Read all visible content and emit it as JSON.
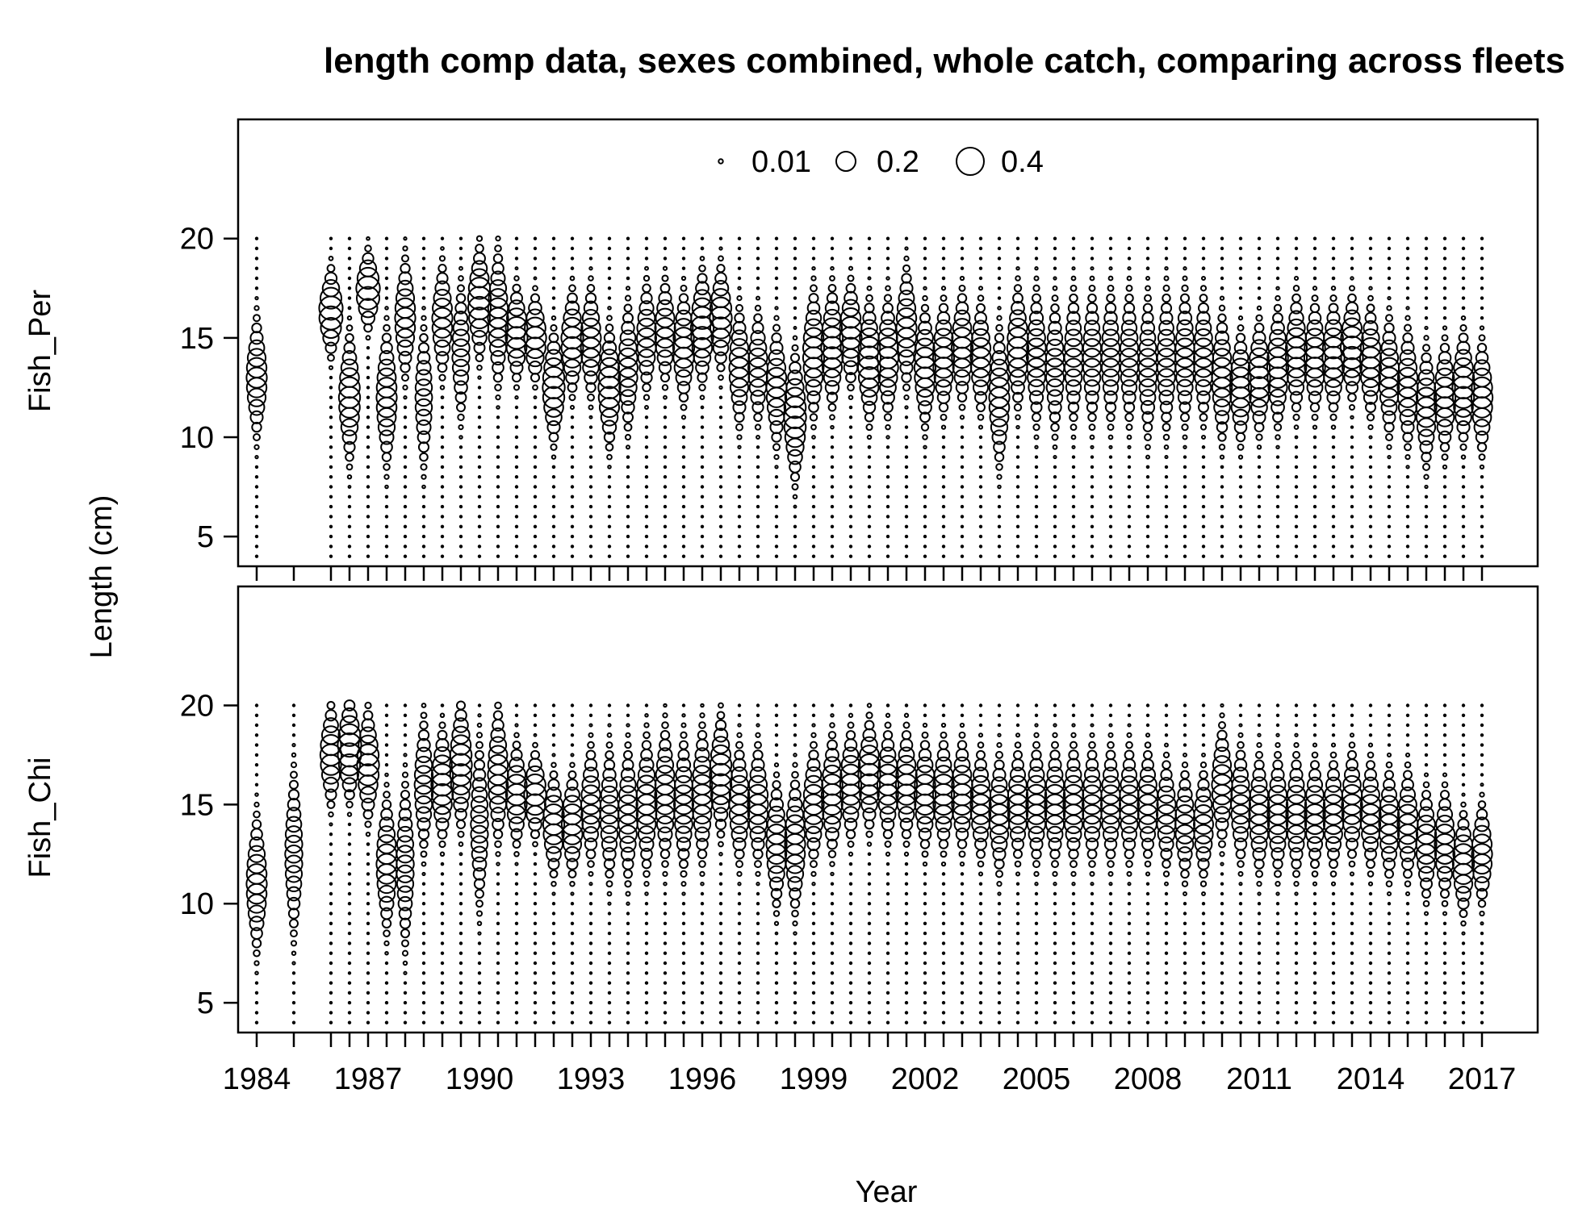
{
  "chart_data": {
    "type": "scatter",
    "subtype": "bubble",
    "title": "length comp data, sexes combined, whole catch, comparing across fleets",
    "xlabel": "Year",
    "ylabel": "Length (cm)",
    "x_ticks": [
      1984,
      1987,
      1990,
      1993,
      1996,
      1999,
      2002,
      2005,
      2008,
      2011,
      2014,
      2017
    ],
    "y_ticks": [
      5,
      10,
      15,
      20
    ],
    "xlim": [
      1983.5,
      2018.5
    ],
    "ylim": [
      3.5,
      26
    ],
    "length_bins": [
      4,
      20,
      0.5
    ],
    "legend": {
      "position": "top-center",
      "entries": [
        {
          "label": "0.01",
          "value": 0.01
        },
        {
          "label": "0.2",
          "value": 0.2
        },
        {
          "label": "0.4",
          "value": 0.4
        }
      ]
    },
    "years": [
      1984,
      1985,
      1986,
      1986.5,
      1987,
      1987.5,
      1988,
      1988.5,
      1989,
      1989.5,
      1990,
      1990.5,
      1991,
      1991.5,
      1992,
      1992.5,
      1993,
      1993.5,
      1994,
      1994.5,
      1995,
      1995.5,
      1996,
      1996.5,
      1997,
      1997.5,
      1998,
      1998.5,
      1999,
      1999.5,
      2000,
      2000.5,
      2001,
      2001.5,
      2002,
      2002.5,
      2003,
      2003.5,
      2004,
      2004.5,
      2005,
      2005.5,
      2006,
      2006.5,
      2007,
      2007.5,
      2008,
      2008.5,
      2009,
      2009.5,
      2010,
      2010.5,
      2011,
      2011.5,
      2012,
      2012.5,
      2013,
      2013.5,
      2014,
      2014.5,
      2015,
      2015.5,
      2016,
      2016.5,
      2017
    ],
    "panels": [
      {
        "name": "Fish_Per",
        "present": [
          1,
          0,
          1,
          1,
          1,
          1,
          1,
          1,
          1,
          1,
          1,
          1,
          1,
          1,
          1,
          1,
          1,
          1,
          1,
          1,
          1,
          1,
          1,
          1,
          1,
          1,
          1,
          1,
          1,
          1,
          1,
          1,
          1,
          1,
          1,
          1,
          1,
          1,
          1,
          1,
          1,
          1,
          1,
          1,
          1,
          1,
          1,
          1,
          1,
          1,
          1,
          1,
          1,
          1,
          1,
          1,
          1,
          1,
          1,
          1,
          1,
          1,
          1,
          1,
          1
        ],
        "mode_length": [
          13.0,
          12.0,
          16.3,
          12.0,
          17.4,
          12.0,
          16.0,
          12.0,
          15.9,
          14.3,
          16.8,
          16.0,
          15.2,
          15.0,
          12.5,
          14.8,
          14.8,
          12.5,
          13.5,
          15.0,
          15.3,
          14.5,
          15.5,
          16.0,
          13.5,
          13.5,
          12.5,
          11.0,
          14.2,
          14.5,
          15.2,
          13.8,
          14.0,
          15.5,
          13.5,
          14.0,
          14.5,
          14.0,
          12.0,
          14.5,
          14.0,
          13.5,
          14.0,
          14.0,
          14.0,
          14.0,
          13.5,
          13.8,
          14.0,
          14.0,
          13.0,
          12.5,
          13.0,
          13.5,
          14.2,
          14.0,
          14.0,
          14.5,
          13.8,
          13.0,
          12.5,
          11.5,
          12.0,
          12.5,
          12.0
        ],
        "spread": [
          1.4,
          1.5,
          1.0,
          1.5,
          0.9,
          1.6,
          1.4,
          1.7,
          1.3,
          1.6,
          1.3,
          1.6,
          1.1,
          1.0,
          1.3,
          1.2,
          1.3,
          1.4,
          1.5,
          1.3,
          1.2,
          1.3,
          1.3,
          1.2,
          1.4,
          1.3,
          1.4,
          1.5,
          1.5,
          1.4,
          1.2,
          1.4,
          1.4,
          1.4,
          1.4,
          1.3,
          1.3,
          1.3,
          1.6,
          1.4,
          1.6,
          1.6,
          1.6,
          1.6,
          1.6,
          1.6,
          1.7,
          1.7,
          1.6,
          1.5,
          1.5,
          1.3,
          1.3,
          1.4,
          1.4,
          1.3,
          1.3,
          1.2,
          1.3,
          1.4,
          1.4,
          1.4,
          1.3,
          1.3,
          1.3
        ],
        "peak_proportion": [
          0.22,
          0.2,
          0.3,
          0.24,
          0.3,
          0.22,
          0.22,
          0.15,
          0.22,
          0.16,
          0.28,
          0.22,
          0.26,
          0.26,
          0.26,
          0.26,
          0.22,
          0.26,
          0.2,
          0.2,
          0.22,
          0.24,
          0.28,
          0.26,
          0.22,
          0.2,
          0.22,
          0.26,
          0.24,
          0.26,
          0.26,
          0.28,
          0.24,
          0.22,
          0.24,
          0.24,
          0.24,
          0.22,
          0.22,
          0.24,
          0.2,
          0.18,
          0.18,
          0.18,
          0.18,
          0.18,
          0.18,
          0.18,
          0.2,
          0.2,
          0.22,
          0.24,
          0.26,
          0.24,
          0.24,
          0.24,
          0.26,
          0.28,
          0.24,
          0.22,
          0.22,
          0.22,
          0.24,
          0.26,
          0.24
        ]
      },
      {
        "name": "Fish_Chi",
        "present": [
          1,
          1,
          1,
          1,
          1,
          1,
          1,
          1,
          1,
          1,
          1,
          1,
          1,
          1,
          1,
          1,
          1,
          1,
          1,
          1,
          1,
          1,
          1,
          1,
          1,
          1,
          1,
          1,
          1,
          1,
          1,
          1,
          1,
          1,
          1,
          1,
          1,
          1,
          1,
          1,
          1,
          1,
          1,
          1,
          1,
          1,
          1,
          1,
          1,
          1,
          1,
          1,
          1,
          1,
          1,
          1,
          1,
          1,
          1,
          1,
          1,
          1,
          1,
          1,
          1
        ],
        "mode_length": [
          11.0,
          12.5,
          17.5,
          17.8,
          17.0,
          12.0,
          12.0,
          16.0,
          16.0,
          17.0,
          14.0,
          16.5,
          15.5,
          15.5,
          14.0,
          14.0,
          15.0,
          14.5,
          14.5,
          15.0,
          15.5,
          15.0,
          15.5,
          16.5,
          15.0,
          15.0,
          13.0,
          13.0,
          15.0,
          15.5,
          16.0,
          16.5,
          16.0,
          16.0,
          15.5,
          15.5,
          15.5,
          15.0,
          14.5,
          15.0,
          15.0,
          15.0,
          15.0,
          15.0,
          15.0,
          15.0,
          15.0,
          14.5,
          14.0,
          14.0,
          16.0,
          15.0,
          14.5,
          14.5,
          14.5,
          14.5,
          14.5,
          15.0,
          14.5,
          14.0,
          14.0,
          13.0,
          13.0,
          12.0,
          12.5
        ],
        "spread": [
          1.6,
          2.0,
          1.2,
          1.2,
          1.3,
          1.6,
          2.0,
          1.6,
          1.3,
          1.5,
          2.0,
          1.6,
          1.2,
          1.0,
          1.2,
          1.2,
          1.4,
          1.6,
          1.6,
          1.6,
          1.6,
          1.6,
          1.6,
          1.4,
          1.4,
          1.4,
          1.5,
          1.6,
          1.4,
          1.4,
          1.3,
          1.3,
          1.3,
          1.3,
          1.3,
          1.3,
          1.3,
          1.3,
          1.4,
          1.3,
          1.4,
          1.4,
          1.4,
          1.4,
          1.4,
          1.4,
          1.3,
          1.3,
          1.3,
          1.3,
          1.4,
          1.4,
          1.4,
          1.4,
          1.4,
          1.3,
          1.3,
          1.3,
          1.3,
          1.3,
          1.3,
          1.3,
          1.3,
          1.2,
          1.2
        ],
        "peak_proportion": [
          0.22,
          0.16,
          0.24,
          0.3,
          0.26,
          0.22,
          0.16,
          0.18,
          0.26,
          0.26,
          0.16,
          0.22,
          0.24,
          0.26,
          0.24,
          0.24,
          0.2,
          0.18,
          0.2,
          0.22,
          0.22,
          0.2,
          0.22,
          0.26,
          0.22,
          0.22,
          0.22,
          0.22,
          0.22,
          0.24,
          0.24,
          0.26,
          0.24,
          0.24,
          0.24,
          0.24,
          0.24,
          0.22,
          0.22,
          0.22,
          0.22,
          0.22,
          0.22,
          0.2,
          0.2,
          0.2,
          0.22,
          0.2,
          0.2,
          0.2,
          0.22,
          0.2,
          0.22,
          0.22,
          0.22,
          0.22,
          0.22,
          0.22,
          0.22,
          0.22,
          0.22,
          0.22,
          0.22,
          0.24,
          0.22
        ]
      }
    ]
  }
}
